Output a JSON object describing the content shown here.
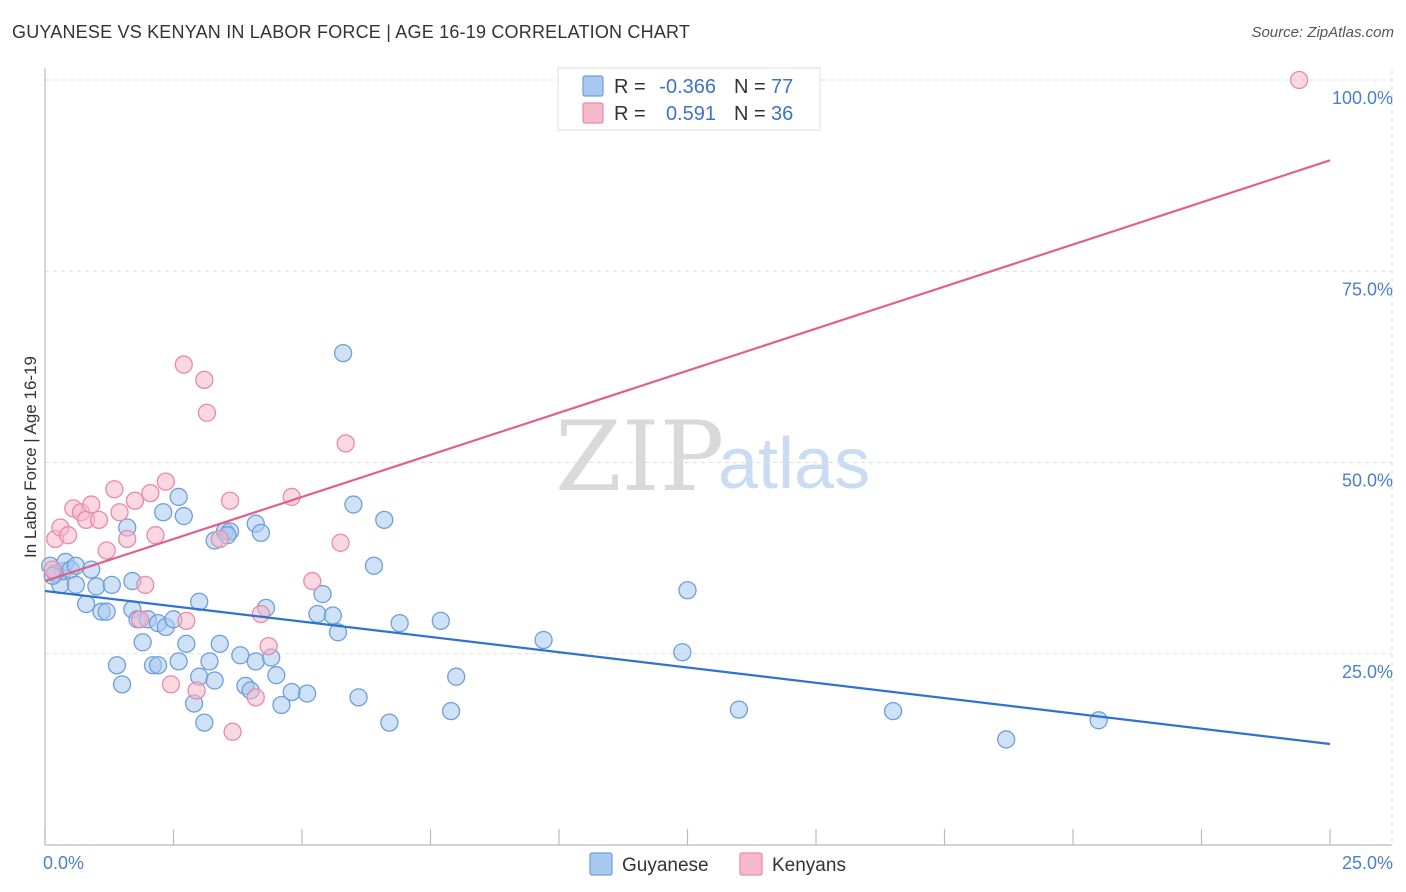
{
  "title": "GUYANESE VS KENYAN IN LABOR FORCE | AGE 16-19 CORRELATION CHART",
  "source": "Source: ZipAtlas.com",
  "watermark": {
    "zip": "ZIP",
    "atlas": "atlas"
  },
  "colors": {
    "blue_fill": "#a8c8f0",
    "blue_stroke": "#6f9fd8",
    "blue_line": "#2f72d0",
    "pink_fill": "#f6b8cb",
    "pink_stroke": "#e88aa8",
    "pink_line": "#e0608a",
    "grid": "#dddddd",
    "axis_tick_text": "#4a80c8"
  },
  "legend": {
    "rows": [
      {
        "r_label": "R =",
        "r_value": "-0.366",
        "n_label": "N =",
        "n_value": "77"
      },
      {
        "r_label": "R =",
        "r_value": "0.591",
        "n_label": "N =",
        "n_value": "36"
      }
    ]
  },
  "chart_data": {
    "type": "scatter",
    "title": "GUYANESE VS KENYAN IN LABOR FORCE | AGE 16-19 CORRELATION CHART",
    "xlabel": "",
    "ylabel": "In Labor Force | Age 16-19",
    "xlim": [
      0,
      25
    ],
    "ylim": [
      0,
      100
    ],
    "x_tick_labels": [
      "0.0%",
      "25.0%"
    ],
    "y_tick_labels": [
      "25.0%",
      "50.0%",
      "75.0%",
      "100.0%"
    ],
    "y_ticks": [
      25,
      50,
      75,
      100
    ],
    "legend_position": "bottom-center",
    "series": [
      {
        "name": "Guyanese",
        "R": -0.366,
        "N": 77,
        "trend": {
          "x0": 0,
          "y0": 33.2,
          "x1": 25,
          "y1": 13.2
        },
        "points": [
          [
            0.1,
            36.5
          ],
          [
            0.2,
            35.5
          ],
          [
            0.3,
            34.0
          ],
          [
            0.35,
            35.8
          ],
          [
            0.4,
            37.0
          ],
          [
            0.5,
            36.0
          ],
          [
            0.6,
            36.5
          ],
          [
            0.6,
            34.0
          ],
          [
            0.8,
            31.5
          ],
          [
            0.9,
            36.0
          ],
          [
            1.0,
            33.8
          ],
          [
            1.1,
            30.5
          ],
          [
            1.2,
            30.5
          ],
          [
            1.3,
            34.0
          ],
          [
            1.4,
            23.5
          ],
          [
            1.5,
            21.0
          ],
          [
            1.6,
            41.5
          ],
          [
            1.7,
            30.8
          ],
          [
            1.7,
            34.5
          ],
          [
            1.8,
            29.5
          ],
          [
            1.9,
            26.5
          ],
          [
            2.0,
            29.5
          ],
          [
            2.1,
            23.5
          ],
          [
            2.2,
            23.5
          ],
          [
            2.2,
            29.0
          ],
          [
            2.3,
            43.5
          ],
          [
            2.35,
            28.5
          ],
          [
            2.5,
            29.5
          ],
          [
            2.6,
            45.5
          ],
          [
            2.6,
            24.0
          ],
          [
            2.7,
            43.0
          ],
          [
            2.75,
            26.3
          ],
          [
            2.9,
            18.5
          ],
          [
            3.0,
            22.0
          ],
          [
            3.0,
            31.8
          ],
          [
            3.1,
            16.0
          ],
          [
            3.2,
            24.0
          ],
          [
            3.3,
            21.5
          ],
          [
            3.3,
            39.8
          ],
          [
            3.4,
            26.3
          ],
          [
            3.5,
            41.0
          ],
          [
            3.6,
            41.0
          ],
          [
            3.8,
            24.8
          ],
          [
            3.9,
            20.8
          ],
          [
            4.0,
            20.2
          ],
          [
            4.1,
            42.0
          ],
          [
            4.1,
            24.0
          ],
          [
            4.2,
            40.8
          ],
          [
            4.3,
            31.0
          ],
          [
            4.4,
            24.5
          ],
          [
            4.5,
            22.2
          ],
          [
            4.6,
            18.3
          ],
          [
            4.8,
            20.0
          ],
          [
            5.1,
            19.8
          ],
          [
            5.3,
            30.2
          ],
          [
            5.4,
            32.8
          ],
          [
            5.6,
            30.0
          ],
          [
            5.7,
            27.8
          ],
          [
            5.8,
            64.3
          ],
          [
            6.0,
            44.5
          ],
          [
            6.1,
            19.3
          ],
          [
            6.4,
            36.5
          ],
          [
            6.6,
            42.5
          ],
          [
            6.7,
            16.0
          ],
          [
            6.9,
            29.0
          ],
          [
            7.7,
            29.3
          ],
          [
            7.9,
            17.5
          ],
          [
            8.0,
            22.0
          ],
          [
            9.7,
            26.8
          ],
          [
            12.4,
            25.2
          ],
          [
            12.5,
            33.3
          ],
          [
            13.5,
            17.7
          ],
          [
            16.5,
            17.5
          ],
          [
            18.7,
            13.8
          ],
          [
            20.5,
            16.3
          ],
          [
            0.15,
            35.2
          ],
          [
            3.55,
            40.5
          ]
        ]
      },
      {
        "name": "Kenyans",
        "R": 0.591,
        "N": 36,
        "trend": {
          "x0": 0,
          "y0": 34.5,
          "x1": 25,
          "y1": 89.5
        },
        "points": [
          [
            0.15,
            36.0
          ],
          [
            0.2,
            40.0
          ],
          [
            0.3,
            41.5
          ],
          [
            0.45,
            40.5
          ],
          [
            0.55,
            44.0
          ],
          [
            0.7,
            43.5
          ],
          [
            0.8,
            42.5
          ],
          [
            0.9,
            44.5
          ],
          [
            1.05,
            42.5
          ],
          [
            1.2,
            38.5
          ],
          [
            1.35,
            46.5
          ],
          [
            1.45,
            43.5
          ],
          [
            1.6,
            40.0
          ],
          [
            1.75,
            45.0
          ],
          [
            1.85,
            29.5
          ],
          [
            1.95,
            34.0
          ],
          [
            2.05,
            46.0
          ],
          [
            2.15,
            40.5
          ],
          [
            2.35,
            47.5
          ],
          [
            2.45,
            21.0
          ],
          [
            2.7,
            62.8
          ],
          [
            2.75,
            29.3
          ],
          [
            2.95,
            20.2
          ],
          [
            3.1,
            60.8
          ],
          [
            3.15,
            56.5
          ],
          [
            3.4,
            40.0
          ],
          [
            3.6,
            45.0
          ],
          [
            3.65,
            14.8
          ],
          [
            4.1,
            19.3
          ],
          [
            4.2,
            30.2
          ],
          [
            4.35,
            26.0
          ],
          [
            4.8,
            45.5
          ],
          [
            5.2,
            34.5
          ],
          [
            5.75,
            39.5
          ],
          [
            5.85,
            52.5
          ],
          [
            24.4,
            100.0
          ]
        ]
      }
    ]
  }
}
